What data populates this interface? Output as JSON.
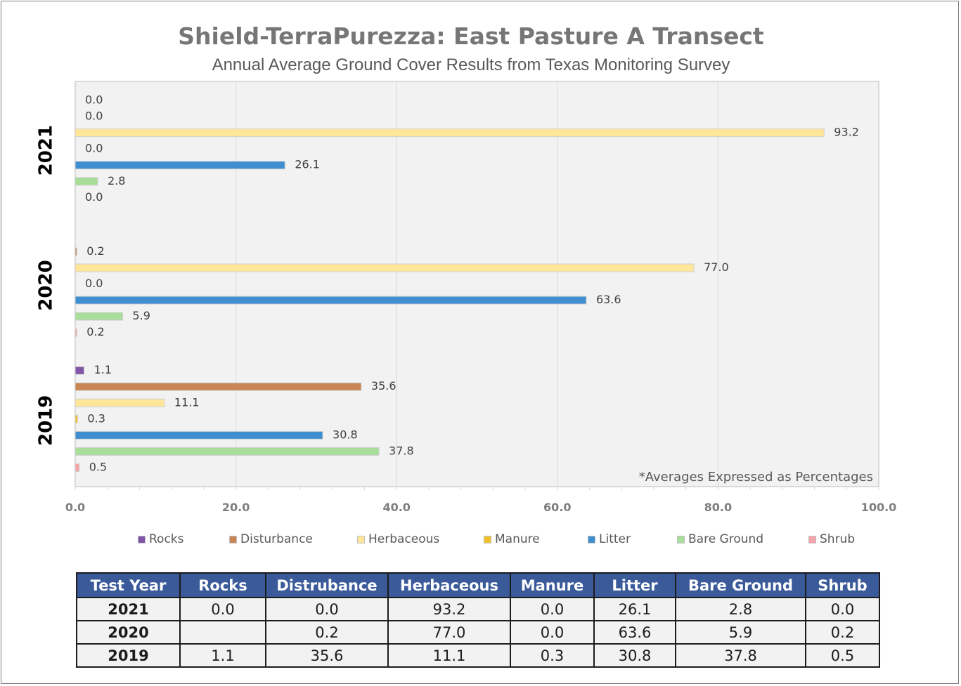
{
  "chart_data": {
    "type": "bar",
    "orientation": "horizontal",
    "title": "Shield-TerraPurezza: East Pasture A Transect",
    "subtitle": "Annual Average Ground Cover Results from Texas Monitoring Survey",
    "note": "*Averages Expressed as Percentages",
    "categories": [
      "2021",
      "2020",
      "2019"
    ],
    "series": [
      {
        "name": "Rocks",
        "color": "#7f55a8",
        "values": [
          0.0,
          null,
          1.1
        ],
        "labels": [
          "0.0",
          "",
          "1.1"
        ]
      },
      {
        "name": "Disturbance",
        "color": "#c98654",
        "values": [
          0.0,
          0.2,
          35.6
        ],
        "labels": [
          "0.0",
          "0.2",
          "35.6"
        ]
      },
      {
        "name": "Herbaceous",
        "color": "#ffe699",
        "values": [
          93.2,
          77.0,
          11.1
        ],
        "labels": [
          "93.2",
          "77.0",
          "11.1"
        ]
      },
      {
        "name": "Manure",
        "color": "#f2c02e",
        "values": [
          0.0,
          0.0,
          0.3
        ],
        "labels": [
          "0.0",
          "0.0",
          "0.3"
        ]
      },
      {
        "name": "Litter",
        "color": "#3f8ed0",
        "values": [
          26.1,
          63.6,
          30.8
        ],
        "labels": [
          "26.1",
          "63.6",
          "30.8"
        ]
      },
      {
        "name": "Bare Ground",
        "color": "#a8dd9a",
        "values": [
          2.8,
          5.9,
          37.8
        ],
        "labels": [
          "2.8",
          "5.9",
          "37.8"
        ]
      },
      {
        "name": "Shrub",
        "color": "#f4a3a8",
        "values": [
          0.0,
          0.2,
          0.5
        ],
        "labels": [
          "0.0",
          "0.2",
          "0.5"
        ]
      }
    ],
    "xlim": [
      0,
      100
    ],
    "xticks": [
      "0.0",
      "20.0",
      "40.0",
      "60.0",
      "80.0",
      "100.0"
    ],
    "grid": true,
    "legend_position": "bottom"
  },
  "table": {
    "headers": [
      "Test Year",
      "Rocks",
      "Distrubance",
      "Herbaceous",
      "Manure",
      "Litter",
      "Bare Ground",
      "Shrub"
    ],
    "rows": [
      [
        "2021",
        "0.0",
        "0.0",
        "93.2",
        "0.0",
        "26.1",
        "2.8",
        "0.0"
      ],
      [
        "2020",
        "",
        "0.2",
        "77.0",
        "0.0",
        "63.6",
        "5.9",
        "0.2"
      ],
      [
        "2019",
        "1.1",
        "35.6",
        "11.1",
        "0.3",
        "30.8",
        "37.8",
        "0.5"
      ]
    ]
  }
}
